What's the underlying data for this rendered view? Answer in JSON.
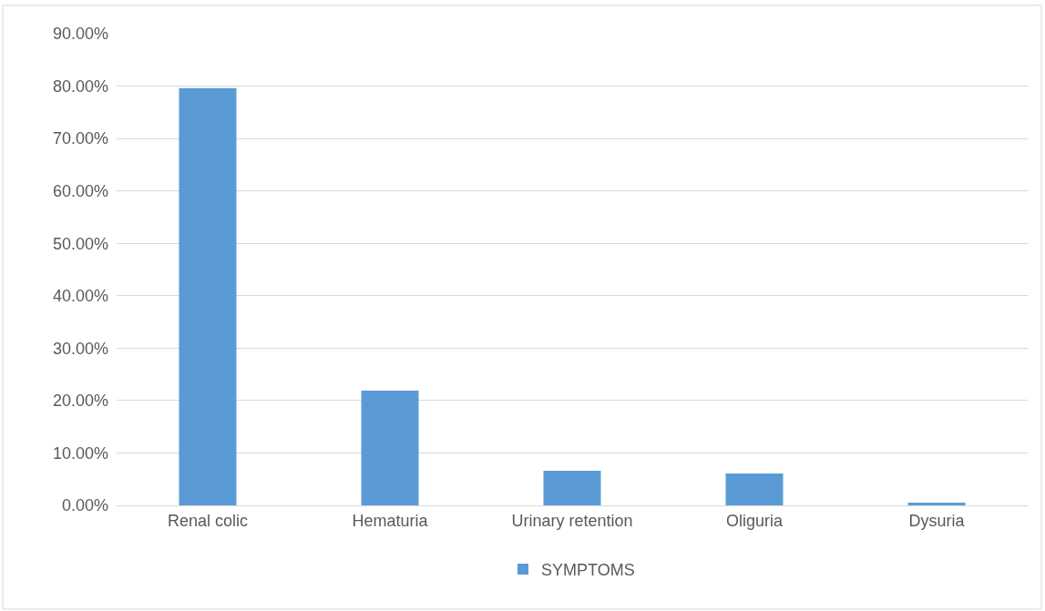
{
  "chart_data": {
    "type": "bar",
    "categories": [
      "Renal colic",
      "Hematuria",
      "Urinary retention",
      "Oliguria",
      "Dysuria"
    ],
    "series": [
      {
        "name": "SYMPTOMS",
        "color": "#5b9bd5",
        "values": [
          79.6,
          21.9,
          6.6,
          6.1,
          0.5
        ]
      }
    ],
    "ylim": [
      0,
      90
    ],
    "yticks": [
      {
        "value": 0,
        "label": "0.00%"
      },
      {
        "value": 10,
        "label": "10.00%"
      },
      {
        "value": 20,
        "label": "20.00%"
      },
      {
        "value": 30,
        "label": "30.00%"
      },
      {
        "value": 40,
        "label": "40.00%"
      },
      {
        "value": 50,
        "label": "50.00%"
      },
      {
        "value": 60,
        "label": "60.00%"
      },
      {
        "value": 70,
        "label": "70.00%"
      },
      {
        "value": 80,
        "label": "80.00%"
      },
      {
        "value": 90,
        "label": "90.00%"
      }
    ],
    "grid": "y",
    "legend": "bottom"
  }
}
